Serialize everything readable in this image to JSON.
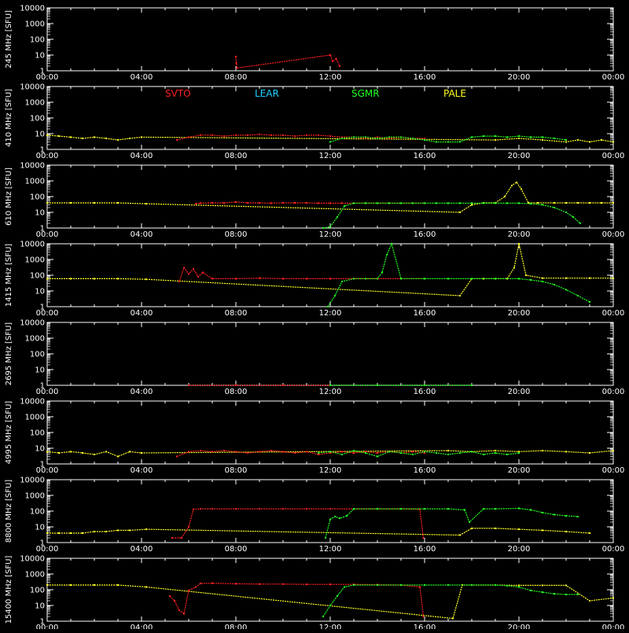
{
  "colors": {
    "background": "#000000",
    "axis": "#ffffff",
    "SVTO": "#ff2020",
    "LEAR": "#20d0ff",
    "SGMR": "#20ff20",
    "PALE": "#ffff20"
  },
  "legend": {
    "stations": [
      "SVTO",
      "LEAR",
      "SGMR",
      "PALE"
    ]
  },
  "chart_data": {
    "type": "scatter",
    "log_y": true,
    "ylim": [
      1,
      10000
    ],
    "y_ticks": [
      "10000",
      "1000",
      "100",
      "10",
      "1"
    ],
    "x_ticks": [
      "00:00",
      "04:00",
      "08:00",
      "12:00",
      "16:00",
      "20:00",
      "00:00"
    ],
    "xlim_hours": [
      0,
      24
    ],
    "grid": false,
    "panels": [
      {
        "ylabel": "245  MHz  [SFU]",
        "series": [
          {
            "name": "SVTO",
            "x": [
              8.0,
              8.02,
              8.04,
              12.0,
              12.1,
              12.25,
              12.4
            ],
            "y": [
              8,
              3,
              1.5,
              10,
              4,
              6,
              2
            ]
          }
        ]
      },
      {
        "ylabel": "410  MHz  [SFU]",
        "series": [
          {
            "name": "PALE",
            "x": [
              0,
              0.5,
              1,
              1.5,
              2,
              2.5,
              3,
              3.5,
              4,
              19,
              20,
              21,
              22,
              22.5,
              23,
              23.5,
              24
            ],
            "y": [
              8,
              7,
              6,
              5,
              6,
              5,
              4,
              5,
              6,
              4,
              5,
              4,
              3,
              4,
              3,
              4,
              3
            ]
          },
          {
            "name": "SVTO",
            "x": [
              5.5,
              6,
              6.5,
              7,
              7.5,
              8,
              8.5,
              9,
              9.5,
              10,
              10.5,
              11,
              11.5,
              12,
              12.5,
              13,
              13.5,
              14,
              14.5,
              15,
              15.5,
              16
            ],
            "y": [
              4,
              6,
              8,
              8,
              7,
              8,
              8,
              9,
              8,
              8,
              7,
              8,
              8,
              7,
              6,
              6,
              5,
              6,
              5,
              6,
              5,
              5
            ]
          },
          {
            "name": "SGMR",
            "x": [
              12,
              12.5,
              13,
              13.5,
              14,
              14.5,
              15,
              15.5,
              16,
              16.5,
              17,
              17.5,
              18,
              18.5,
              19,
              19.5,
              20,
              20.5,
              21,
              21.5,
              22
            ],
            "y": [
              3,
              5,
              6,
              6,
              5,
              6,
              6,
              5,
              4,
              3,
              3,
              3,
              6,
              7,
              7,
              6,
              7,
              6,
              6,
              5,
              4
            ]
          }
        ]
      },
      {
        "ylabel": "610  MHz  [SFU]",
        "series": [
          {
            "name": "PALE",
            "x": [
              0,
              1,
              2,
              3,
              4.2,
              17.5,
              18,
              18.5,
              19,
              19.4,
              19.7,
              19.9,
              20.1,
              20.4,
              20.8,
              21.5,
              22,
              22.5,
              23,
              23.5,
              24
            ],
            "y": [
              40,
              40,
              40,
              40,
              35,
              10,
              30,
              40,
              40,
              100,
              500,
              800,
              300,
              40,
              40,
              40,
              40,
              40,
              40,
              40,
              40
            ]
          },
          {
            "name": "SVTO",
            "x": [
              6.3,
              6.5,
              7,
              7.5,
              8,
              8.5,
              9,
              9.5,
              10,
              10.5,
              11,
              11.5,
              12,
              12.5,
              13,
              13.5,
              14,
              14.5,
              15,
              15.5,
              16
            ],
            "y": [
              35,
              38,
              40,
              40,
              45,
              40,
              40,
              38,
              40,
              40,
              40,
              38,
              38,
              38,
              38,
              38,
              38,
              38,
              38,
              38,
              38
            ]
          },
          {
            "name": "SGMR",
            "x": [
              11.7,
              12,
              12.3,
              12.6,
              13,
              13.5,
              14,
              14.5,
              15,
              15.5,
              16,
              16.5,
              17,
              17.5,
              18,
              18.5,
              19,
              19.5,
              20,
              20.5,
              21,
              21.5,
              22,
              22.3,
              22.6
            ],
            "y": [
              1,
              1.2,
              5,
              25,
              38,
              38,
              38,
              38,
              38,
              38,
              38,
              38,
              38,
              38,
              38,
              38,
              38,
              38,
              38,
              35,
              30,
              20,
              10,
              5,
              2
            ]
          }
        ]
      },
      {
        "ylabel": "1415  MHz  [SFU]",
        "series": [
          {
            "name": "PALE",
            "x": [
              0,
              1,
              2,
              3,
              4.2,
              17.5,
              18,
              18.5,
              19,
              19.5,
              19.8,
              20.0,
              20.3,
              21,
              22,
              23,
              24
            ],
            "y": [
              60,
              60,
              60,
              60,
              55,
              5,
              60,
              60,
              60,
              60,
              300,
              10000,
              100,
              65,
              65,
              65,
              65
            ]
          },
          {
            "name": "SVTO",
            "x": [
              5.6,
              5.8,
              6.0,
              6.2,
              6.4,
              6.6,
              7,
              8,
              9,
              10,
              11,
              12,
              13,
              14,
              15,
              16
            ],
            "y": [
              40,
              300,
              120,
              250,
              80,
              150,
              60,
              60,
              65,
              60,
              60,
              60,
              60,
              60,
              60,
              60
            ]
          },
          {
            "name": "SGMR",
            "x": [
              11.9,
              12.2,
              12.5,
              13,
              13.5,
              14,
              14.2,
              14.4,
              14.6,
              15,
              16,
              17,
              18,
              19,
              20,
              20.5,
              21,
              21.5,
              22,
              22.5,
              23
            ],
            "y": [
              1,
              5,
              40,
              60,
              60,
              60,
              150,
              2000,
              10000,
              60,
              60,
              60,
              60,
              60,
              60,
              50,
              40,
              25,
              12,
              5,
              2
            ]
          }
        ]
      },
      {
        "ylabel": "2695  MHz  [SFU]",
        "series": [
          {
            "name": "SVTO",
            "x": [
              6,
              8,
              10,
              12
            ],
            "y": [
              1,
              1,
              1,
              1
            ]
          },
          {
            "name": "SGMR",
            "x": [
              12,
              14,
              16,
              18
            ],
            "y": [
              1,
              1,
              1,
              1
            ]
          }
        ]
      },
      {
        "ylabel": "4995  MHz  [SFU]",
        "series": [
          {
            "name": "PALE",
            "x": [
              0,
              0.5,
              1,
              1.5,
              2,
              2.5,
              3,
              3.5,
              4,
              17,
              18,
              19,
              20,
              21,
              22,
              23,
              24
            ],
            "y": [
              6,
              5,
              6,
              5,
              4,
              6,
              3,
              6,
              5,
              7,
              6,
              7,
              6,
              7,
              6,
              5,
              7
            ]
          },
          {
            "name": "SVTO",
            "x": [
              5.5,
              6,
              6.5,
              7,
              7.5,
              8,
              8.5,
              9,
              9.5,
              10,
              10.5,
              11,
              11.5,
              12,
              12.5,
              13,
              13.5,
              14,
              14.5,
              15,
              15.5,
              16
            ],
            "y": [
              3,
              6,
              7,
              6,
              7,
              6,
              5,
              6,
              7,
              6,
              5,
              6,
              4,
              5,
              6,
              5,
              6,
              5,
              6,
              5,
              6,
              5
            ]
          },
          {
            "name": "SGMR",
            "x": [
              11.5,
              12,
              12.5,
              13,
              13.5,
              14,
              14.5,
              15,
              15.5,
              16,
              16.5,
              17,
              17.5,
              18,
              18.5,
              19,
              19.5,
              20
            ],
            "y": [
              5,
              6,
              4,
              7,
              5,
              3,
              6,
              5,
              4,
              6,
              5,
              4,
              5,
              6,
              4,
              5,
              4,
              5
            ]
          }
        ]
      },
      {
        "ylabel": "8800  MHz  [SFU]",
        "series": [
          {
            "name": "PALE",
            "x": [
              0,
              0.5,
              1,
              1.5,
              2,
              2.5,
              3,
              3.5,
              4.2,
              17.5,
              18,
              19,
              20,
              21,
              22,
              23
            ],
            "y": [
              4,
              4,
              4,
              4,
              5,
              5,
              6,
              6,
              7,
              3,
              8,
              8,
              7,
              6,
              5,
              4
            ]
          },
          {
            "name": "SVTO",
            "x": [
              5.3,
              5.7,
              6.0,
              6.2,
              6.5,
              7,
              8,
              9,
              10,
              11,
              12,
              13,
              14,
              15,
              15.8,
              15.95
            ],
            "y": [
              2,
              2,
              10,
              130,
              140,
              140,
              140,
              140,
              140,
              140,
              140,
              140,
              140,
              140,
              130,
              2
            ]
          },
          {
            "name": "SGMR",
            "x": [
              11.8,
              12,
              12.2,
              12.4,
              12.7,
              13,
              14,
              15,
              16,
              17,
              17.7,
              17.9,
              18.5,
              19,
              20,
              20.5,
              21,
              21.5,
              22,
              22.5
            ],
            "y": [
              2,
              30,
              45,
              35,
              50,
              140,
              140,
              140,
              140,
              140,
              120,
              20,
              140,
              140,
              150,
              120,
              80,
              60,
              50,
              45
            ]
          }
        ]
      },
      {
        "ylabel": "15400  MHz  [SFU]",
        "series": [
          {
            "name": "PALE",
            "x": [
              0,
              1,
              2,
              3,
              4.2,
              17.2,
              17.6,
              18,
              19,
              20,
              21,
              22,
              23,
              24
            ],
            "y": [
              200,
              200,
              200,
              200,
              150,
              1.5,
              200,
              200,
              200,
              190,
              190,
              190,
              20,
              30
            ]
          },
          {
            "name": "SVTO",
            "x": [
              5.2,
              5.4,
              5.6,
              5.8,
              6.0,
              6.3,
              6.5,
              7,
              8,
              9,
              10,
              11,
              12,
              13,
              14,
              15,
              15.8,
              15.95
            ],
            "y": [
              40,
              20,
              5,
              3,
              90,
              150,
              250,
              260,
              240,
              230,
              230,
              220,
              220,
              220,
              210,
              200,
              150,
              2
            ]
          },
          {
            "name": "SGMR",
            "x": [
              11.7,
              12,
              12.3,
              12.6,
              13,
              14,
              15,
              16,
              17,
              18,
              19,
              19.5,
              20,
              20.5,
              21,
              21.5,
              22,
              22.5
            ],
            "y": [
              2,
              10,
              40,
              150,
              200,
              200,
              200,
              200,
              200,
              200,
              200,
              180,
              150,
              90,
              70,
              55,
              50,
              50
            ]
          }
        ]
      }
    ]
  }
}
